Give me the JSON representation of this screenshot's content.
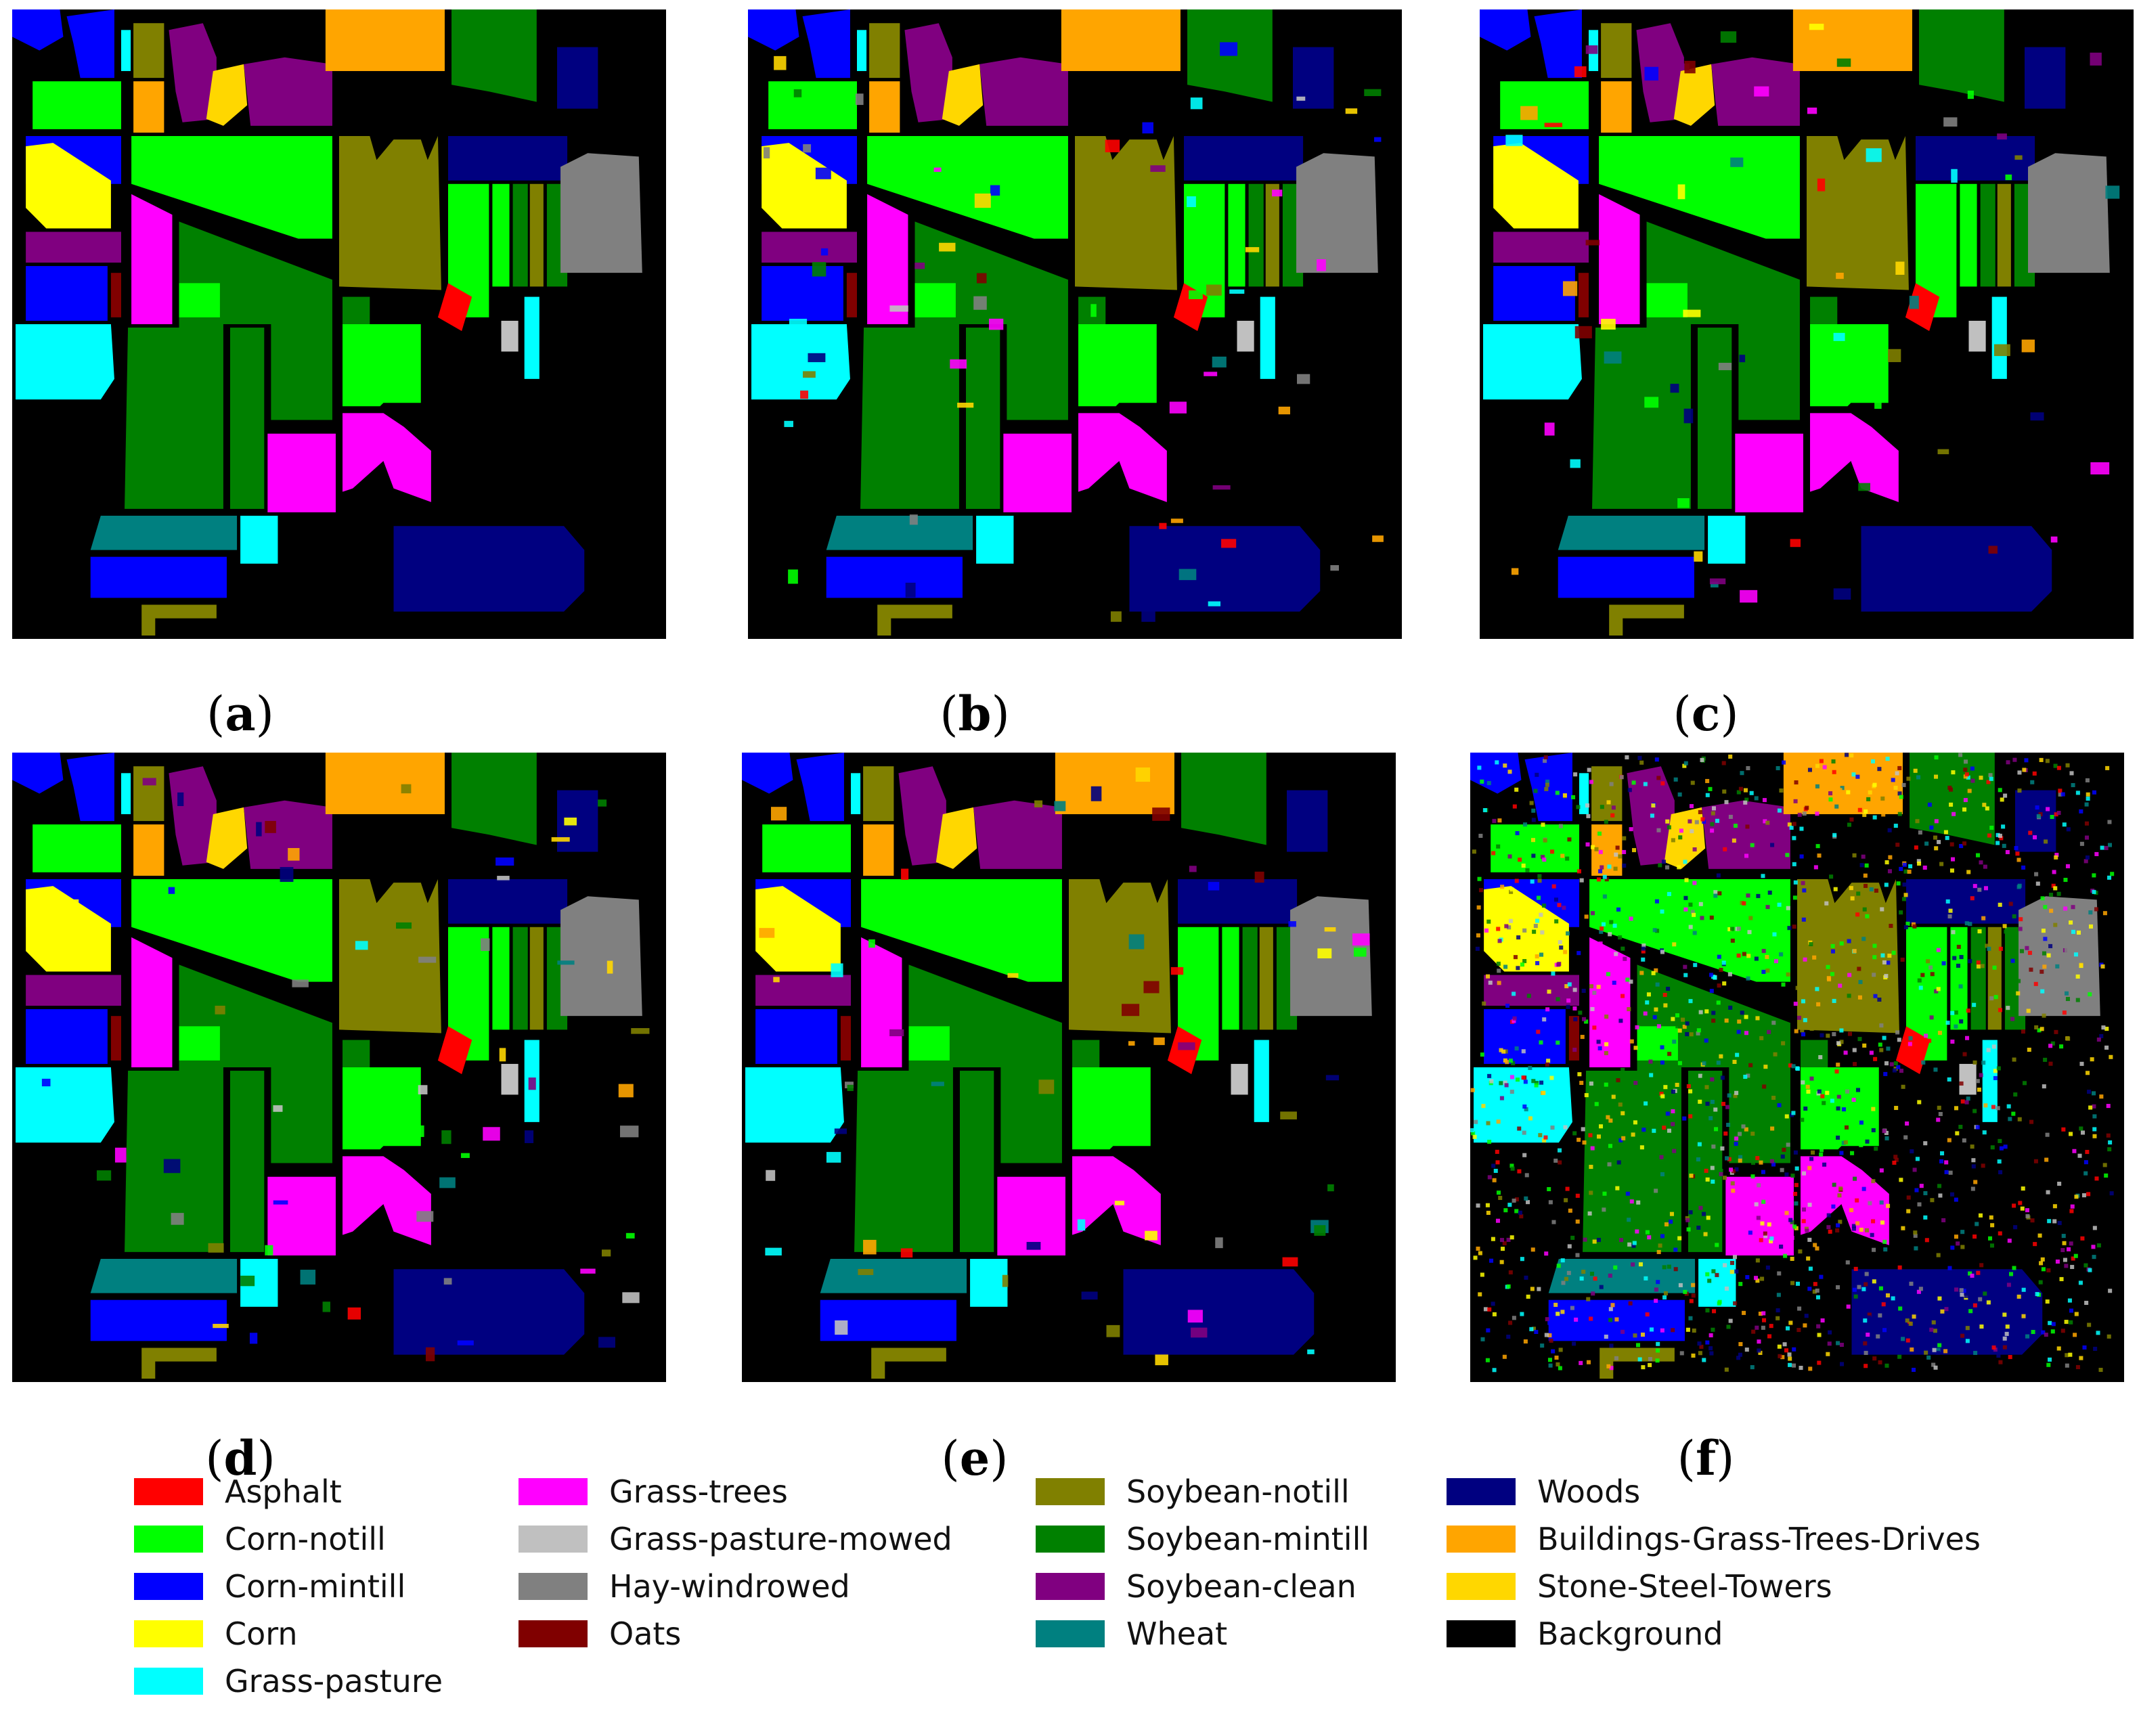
{
  "panels": [
    {
      "id": "a",
      "label": "a",
      "variant": "clean"
    },
    {
      "id": "b",
      "label": "b",
      "variant": "slight"
    },
    {
      "id": "c",
      "label": "c",
      "variant": "slight"
    },
    {
      "id": "d",
      "label": "d",
      "variant": "slight"
    },
    {
      "id": "e",
      "label": "e",
      "variant": "slight"
    },
    {
      "id": "f",
      "label": "f",
      "variant": "noisy"
    }
  ],
  "legend": [
    {
      "label": "Asphalt",
      "color": "#ff0000"
    },
    {
      "label": "Corn-notill",
      "color": "#00ff00"
    },
    {
      "label": "Corn-mintill",
      "color": "#0000ff"
    },
    {
      "label": "Corn",
      "color": "#ffff00"
    },
    {
      "label": "Grass-pasture",
      "color": "#00ffff"
    },
    {
      "label": "Grass-trees",
      "color": "#ff00ff"
    },
    {
      "label": "Grass-pasture-mowed",
      "color": "#c0c0c0"
    },
    {
      "label": "Hay-windrowed",
      "color": "#808080"
    },
    {
      "label": "Oats",
      "color": "#800000"
    },
    {
      "label": "Soybean-notill",
      "color": "#808000"
    },
    {
      "label": "Soybean-mintill",
      "color": "#008000"
    },
    {
      "label": "Soybean-clean",
      "color": "#800080"
    },
    {
      "label": "Wheat",
      "color": "#008080"
    },
    {
      "label": "Woods",
      "color": "#000080"
    },
    {
      "label": "Buildings-Grass-Trees-Drives",
      "color": "#ffa500"
    },
    {
      "label": "Stone-Steel-Towers",
      "color": "#ffd700"
    },
    {
      "label": "Background",
      "color": "#000000"
    }
  ]
}
